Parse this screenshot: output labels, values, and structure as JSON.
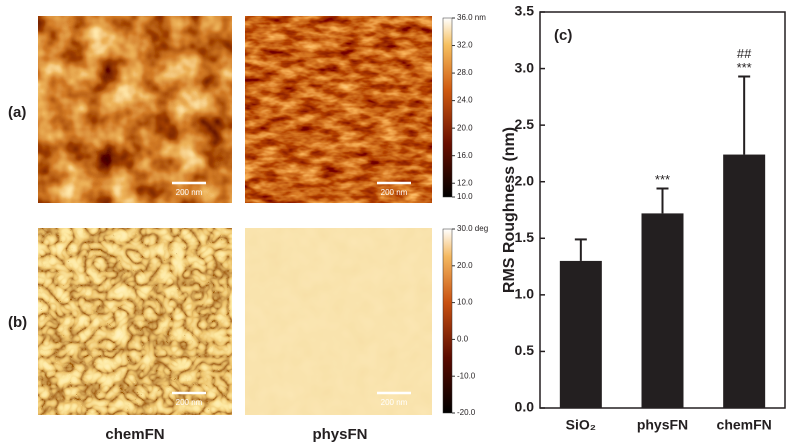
{
  "panel_labels": [
    "(a)",
    "(b)"
  ],
  "image_labels": [
    "chemFN",
    "physFN"
  ],
  "scale_bar_label": "200 nm",
  "colorbars": [
    {
      "range": [
        10,
        36
      ],
      "ticks": [
        {
          "value": 36,
          "label": "36.0 nm"
        },
        {
          "value": 32,
          "label": "32.0"
        },
        {
          "value": 28,
          "label": "28.0"
        },
        {
          "value": 24,
          "label": "24.0"
        },
        {
          "value": 20,
          "label": "20.0"
        },
        {
          "value": 16,
          "label": "16.0"
        },
        {
          "value": 12,
          "label": "12.0"
        },
        {
          "value": 10,
          "label": "10.0"
        }
      ]
    },
    {
      "range": [
        -20,
        30
      ],
      "ticks": [
        {
          "value": 30,
          "label": "30.0 deg"
        },
        {
          "value": 20,
          "label": "20.0"
        },
        {
          "value": 10,
          "label": "10.0"
        },
        {
          "value": 0,
          "label": "0.0"
        },
        {
          "value": -10,
          "label": "-10.0"
        },
        {
          "value": -20,
          "label": "-20.0"
        }
      ]
    }
  ],
  "chart_data": {
    "type": "bar",
    "panel_label": "(c)",
    "ylabel": "RMS Roughness (nm)",
    "categories": [
      "SiO₂",
      "physFN",
      "chemFN"
    ],
    "values": [
      1.3,
      1.72,
      2.24
    ],
    "errors": [
      0.19,
      0.22,
      0.69
    ],
    "bar_annotations": [
      [],
      [
        "***"
      ],
      [
        "##",
        "***"
      ]
    ],
    "color": "#231f20",
    "ylim": [
      0,
      3.5
    ],
    "yticks": [
      {
        "value": 0,
        "label": "0.0"
      },
      {
        "value": 0.5,
        "label": "0.5"
      },
      {
        "value": 1,
        "label": "1.0"
      },
      {
        "value": 1.5,
        "label": "1.5"
      },
      {
        "value": 2,
        "label": "2.0"
      },
      {
        "value": 2.5,
        "label": "2.5"
      },
      {
        "value": 3,
        "label": "3.0"
      },
      {
        "value": 3.5,
        "label": "3.5"
      }
    ]
  }
}
